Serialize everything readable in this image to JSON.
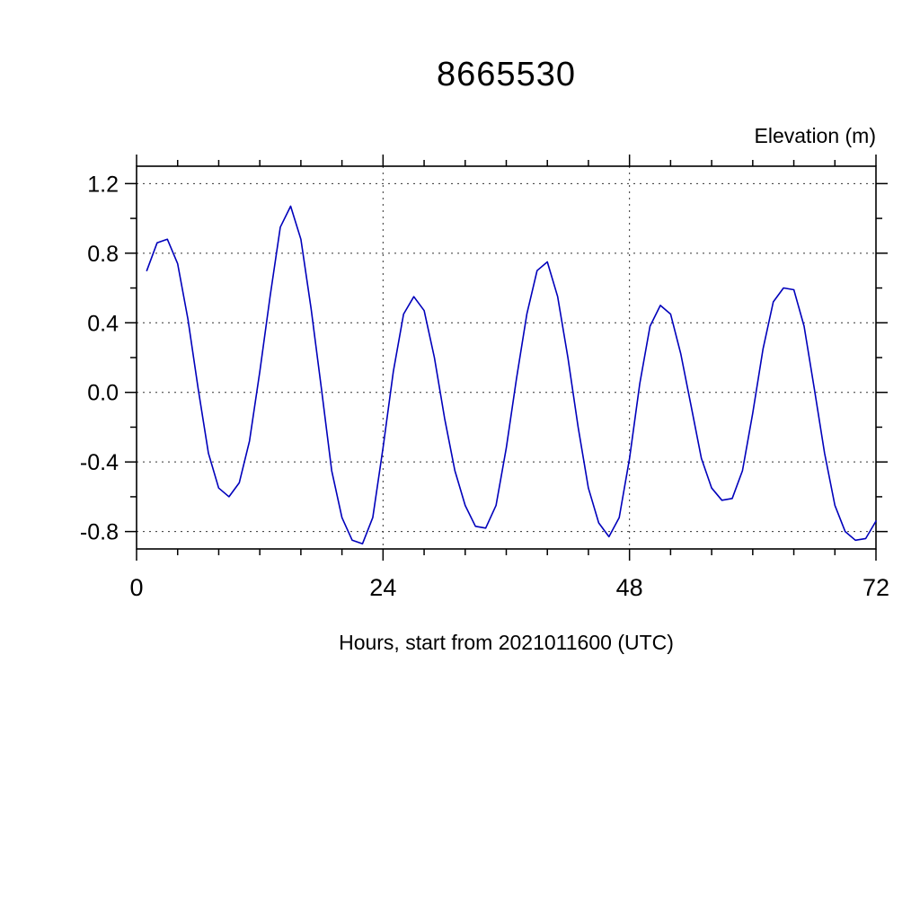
{
  "page": {
    "background": "#ffffff",
    "text_color": "#000000"
  },
  "chart_data": {
    "type": "line",
    "title": "8665530",
    "ylabel": "Elevation (m)",
    "xlabel": "Hours, start from 2021011600 (UTC)",
    "line_color": "#0000bb",
    "grid": true,
    "grid_style": "dashed",
    "xlim": [
      0,
      72
    ],
    "ylim": [
      -0.9,
      1.3
    ],
    "x_ticks_major": [
      0,
      24,
      48,
      72
    ],
    "x_tick_labels": [
      "0",
      "24",
      "48",
      "72"
    ],
    "x_minor_step": 4,
    "x_grid": [
      24,
      48
    ],
    "y_ticks_major": [
      -0.8,
      -0.4,
      0.0,
      0.4,
      0.8,
      1.2
    ],
    "y_tick_labels": [
      "-0.8",
      "-0.4",
      "0.0",
      "0.4",
      "0.8",
      "1.2"
    ],
    "y_minor_step": 0.2,
    "legend": "none",
    "series": [
      {
        "name": "elevation",
        "x": [
          1,
          2,
          3,
          4,
          5,
          6,
          7,
          8,
          9,
          10,
          11,
          12,
          13,
          14,
          15,
          16,
          17,
          18,
          19,
          20,
          21,
          22,
          23,
          24,
          25,
          26,
          27,
          28,
          29,
          30,
          31,
          32,
          33,
          34,
          35,
          36,
          37,
          38,
          39,
          40,
          41,
          42,
          43,
          44,
          45,
          46,
          47,
          48,
          49,
          50,
          51,
          52,
          53,
          54,
          55,
          56,
          57,
          58,
          59,
          60,
          61,
          62,
          63,
          64,
          65,
          66,
          67,
          68,
          69,
          70,
          71,
          72
        ],
        "y": [
          0.7,
          0.86,
          0.88,
          0.74,
          0.42,
          0.02,
          -0.35,
          -0.55,
          -0.6,
          -0.52,
          -0.28,
          0.12,
          0.55,
          0.95,
          1.07,
          0.88,
          0.48,
          0.02,
          -0.45,
          -0.72,
          -0.85,
          -0.87,
          -0.72,
          -0.32,
          0.12,
          0.45,
          0.55,
          0.47,
          0.2,
          -0.15,
          -0.45,
          -0.65,
          -0.77,
          -0.78,
          -0.65,
          -0.32,
          0.08,
          0.45,
          0.7,
          0.75,
          0.55,
          0.2,
          -0.2,
          -0.55,
          -0.75,
          -0.83,
          -0.72,
          -0.38,
          0.05,
          0.38,
          0.5,
          0.45,
          0.22,
          -0.08,
          -0.38,
          -0.55,
          -0.62,
          -0.61,
          -0.45,
          -0.12,
          0.25,
          0.52,
          0.6,
          0.59,
          0.38,
          0.02,
          -0.35,
          -0.65,
          -0.8,
          -0.85,
          -0.84,
          -0.74
        ]
      }
    ]
  }
}
